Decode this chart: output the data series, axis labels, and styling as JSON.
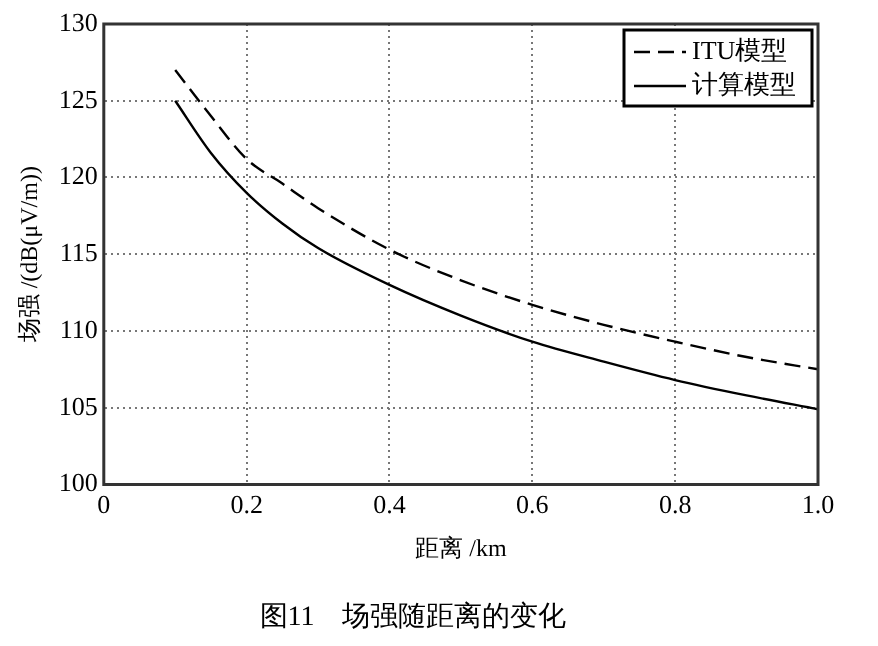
{
  "chart_data": {
    "type": "line",
    "title": "图11　场强随距离的变化",
    "xlabel": "距离 /km",
    "ylabel": "场强 /(dB(μV/m))",
    "xlim": [
      0,
      1
    ],
    "xticks": [
      0,
      0.2,
      0.4,
      0.6,
      0.8,
      {
        "value": 1,
        "label": "1.0"
      }
    ],
    "ylim": [
      100,
      130
    ],
    "yticks": [
      100,
      105,
      110,
      115,
      120,
      125,
      130
    ],
    "grid": true,
    "legend": "top right",
    "marker": "none",
    "series": [
      {
        "name": "ITU模型",
        "color": "#000000",
        "line_style": "dashed",
        "x": [
          0.1,
          0.15,
          0.2,
          0.25,
          0.3,
          0.4,
          0.5,
          0.6,
          0.7,
          0.8,
          0.9,
          1.0
        ],
        "values": [
          127,
          124,
          121.2,
          119.6,
          118,
          115.3,
          113.3,
          111.7,
          110.4,
          109.3,
          108.3,
          107.5
        ]
      },
      {
        "name": "计算模型",
        "color": "#000000",
        "line_style": "solid",
        "x": [
          0.1,
          0.15,
          0.2,
          0.25,
          0.3,
          0.4,
          0.5,
          0.6,
          0.7,
          0.8,
          0.9,
          1.0
        ],
        "values": [
          125,
          121.6,
          119,
          117,
          115.4,
          113,
          111,
          109.3,
          108,
          106.8,
          105.8,
          104.9
        ]
      }
    ]
  }
}
